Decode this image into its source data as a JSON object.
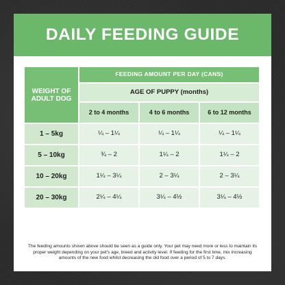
{
  "title": "DAILY FEEDING GUIDE",
  "table": {
    "weight_header": "WEIGHT OF ADULT DOG",
    "feeding_header": "FEEDING AMOUNT PER DAY (CANS)",
    "age_header": "AGE OF PUPPY (months)",
    "columns": [
      "2 to 4 months",
      "4 to 6 months",
      "6 to 12 months"
    ],
    "rows": [
      {
        "weight": "1 – 5kg",
        "values": [
          "¼ – 1¼",
          "¼ – 1¼",
          "¼ – 1¼"
        ]
      },
      {
        "weight": "5 – 10kg",
        "values": [
          "¾ – 2",
          "1¼ – 2",
          "1¼ – 2"
        ]
      },
      {
        "weight": "10 – 20kg",
        "values": [
          "1¼ – 3¼",
          "2 – 3¼",
          "2 – 3¼"
        ]
      },
      {
        "weight": "20 – 30kg",
        "values": [
          "2¼ – 4¼",
          "3¼ – 4½",
          "3¼ – 4½"
        ]
      }
    ]
  },
  "footnote": "The feeding amounts shown above should be seen as a guide only. Your pet may need more or less to maintain its proper weight depending on your pet's age, breed and activity level. If feeding for the first time, mix increasing amounts of the new food whilst decreasing the old food over a period of 5 to 7 days.",
  "colors": {
    "brand_green": "#6bb86a",
    "header_green": "#78bf76",
    "light_green": "#e6f2e5",
    "background": "#2e2e2e"
  }
}
